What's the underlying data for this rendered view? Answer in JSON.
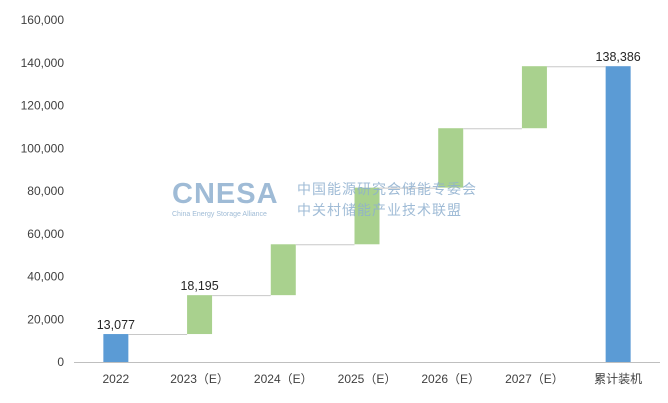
{
  "chart_data": {
    "type": "bar",
    "subtype": "waterfall",
    "categories": [
      "2022",
      "2023（E）",
      "2024（E）",
      "2025（E）",
      "2026（E）",
      "2027（E）",
      "累计装机"
    ],
    "increments": [
      13077,
      18195,
      23800,
      26500,
      27800,
      29014,
      null
    ],
    "cumulative": [
      13077,
      31272,
      55072,
      81572,
      109372,
      138386,
      138386
    ],
    "data_labels": [
      "13,077",
      "18,195",
      "",
      "",
      "",
      "",
      "138,386"
    ],
    "y_ticks": [
      "0",
      "20,000",
      "40,000",
      "60,000",
      "80,000",
      "100,000",
      "120,000",
      "140,000",
      "160,000"
    ],
    "ylim": [
      0,
      160000
    ],
    "grid": false,
    "title": "",
    "xlabel": "",
    "ylabel": "",
    "colors": {
      "total": "#5b9bd5",
      "increment": "#a9d18e",
      "connector": "#c8c8c8",
      "axis": "#bfbfbf"
    }
  },
  "watermark": {
    "brand": "CNESA",
    "subtitle": "China Energy Storage Alliance",
    "cn_line1": "中国能源研究会储能专委会",
    "cn_line2": "中关村储能产业技术联盟"
  }
}
